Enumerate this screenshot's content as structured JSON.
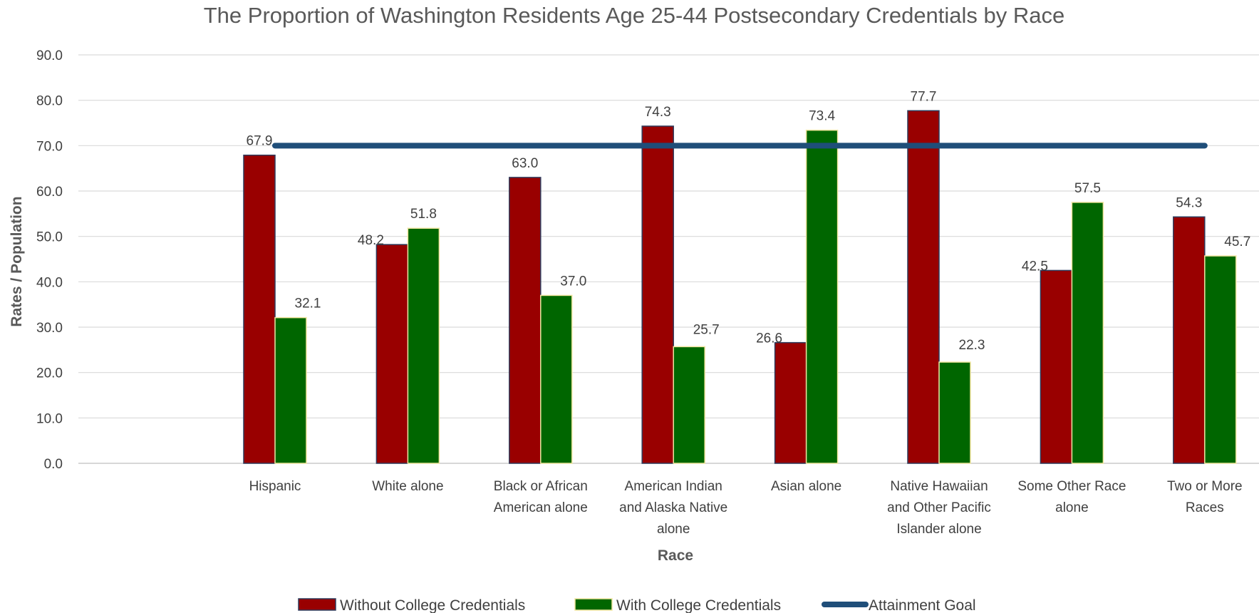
{
  "chart_data": {
    "type": "bar",
    "title": "The Proportion of Washington Residents Age 25-44 Postsecondary Credentials by Race",
    "xlabel": "Race",
    "ylabel": "Rates / Population",
    "ylim": [
      0,
      90
    ],
    "yticks": [
      "0.0",
      "10.0",
      "20.0",
      "30.0",
      "40.0",
      "50.0",
      "60.0",
      "70.0",
      "80.0",
      "90.0"
    ],
    "grid": true,
    "legend_position": "bottom",
    "categories": [
      [
        "Hispanic"
      ],
      [
        "White alone"
      ],
      [
        "Black or African",
        "American alone"
      ],
      [
        "American Indian",
        "and Alaska Native",
        "alone"
      ],
      [
        "Asian alone"
      ],
      [
        "Native Hawaiian",
        "and Other Pacific",
        "Islander alone"
      ],
      [
        "Some Other Race",
        "alone"
      ],
      [
        "Two or More",
        "Races"
      ]
    ],
    "series": [
      {
        "name": "Without College Credentials",
        "kind": "bar",
        "color": "#990000",
        "values": [
          67.9,
          48.2,
          63.0,
          74.3,
          26.6,
          77.7,
          42.5,
          54.3
        ],
        "labels": [
          "67.9",
          "48.2",
          "63.0",
          "74.3",
          "26.6",
          "77.7",
          "42.5",
          "54.3"
        ]
      },
      {
        "name": "With College Credentials",
        "kind": "bar",
        "color": "#006600",
        "values": [
          32.1,
          51.8,
          37.0,
          25.7,
          73.4,
          22.3,
          57.5,
          45.7
        ],
        "labels": [
          "32.1",
          "51.8",
          "37.0",
          "25.7",
          "73.4",
          "22.3",
          "57.5",
          "45.7"
        ]
      },
      {
        "name": "Attainment Goal",
        "kind": "line",
        "color": "#1f4e79",
        "values": [
          70,
          70,
          70,
          70,
          70,
          70,
          70,
          70
        ]
      }
    ]
  }
}
